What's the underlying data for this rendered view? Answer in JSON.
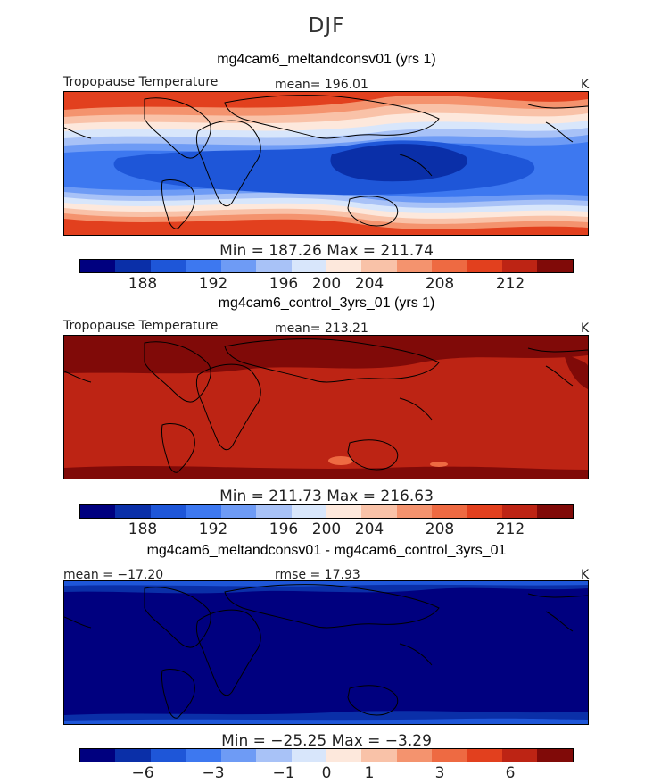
{
  "season": "DJF",
  "panels": [
    {
      "title": "mg4cam6_meltandconsv01 (yrs 1)",
      "left_label": "Tropopause Temperature",
      "center_label": "mean= 196.01",
      "units": "K",
      "minmax": "Min = 187.26 Max = 211.74",
      "ticks": [
        "188",
        "192",
        "196",
        "200",
        "204",
        "208",
        "212"
      ]
    },
    {
      "title": "mg4cam6_control_3yrs_01 (yrs 1)",
      "left_label": "Tropopause Temperature",
      "center_label": "mean= 213.21",
      "units": "K",
      "minmax": "Min = 211.73 Max = 216.63",
      "ticks": [
        "188",
        "192",
        "196",
        "200",
        "204",
        "208",
        "212"
      ]
    },
    {
      "title": "mg4cam6_meltandconsv01 - mg4cam6_control_3yrs_01",
      "left_label": "mean = −17.20",
      "center_label": "rmse = 17.93",
      "units": "K",
      "minmax": "Min = −25.25 Max = −3.29",
      "ticks": [
        "−6",
        "−3",
        "−1",
        "0",
        "1",
        "3",
        "6"
      ]
    }
  ],
  "colorbar_colors": [
    "#00007f",
    "#0a2fa8",
    "#1e56d8",
    "#3d78f0",
    "#6e9bf5",
    "#a8c2f7",
    "#d8e6fb",
    "#fde8dc",
    "#f9c2a8",
    "#f4936e",
    "#ee6a42",
    "#e2401e",
    "#bd2414",
    "#800a08"
  ]
}
